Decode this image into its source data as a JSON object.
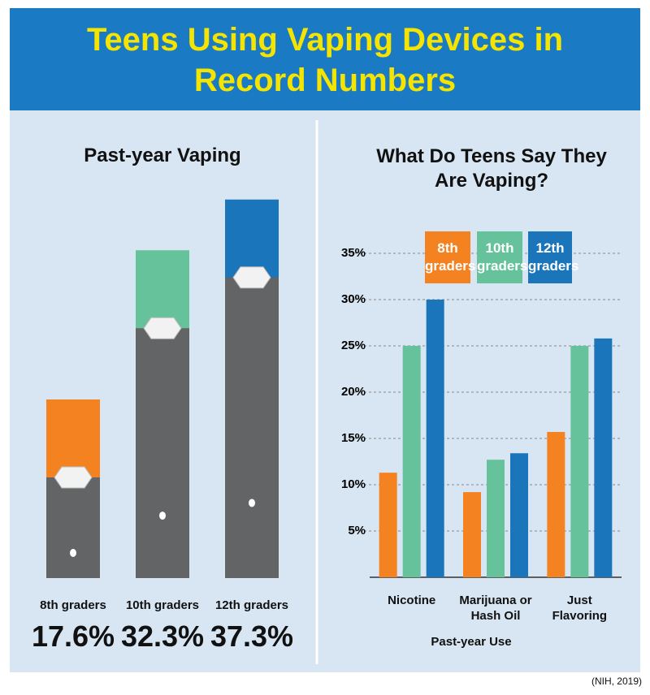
{
  "title": "Teens Using Vaping Devices in Record Numbers",
  "source": "(NIH, 2019)",
  "chart_data": [
    {
      "type": "device-bar",
      "title": "Past-year Vaping",
      "categories": [
        "8th graders",
        "10th graders",
        "12th graders"
      ],
      "values": [
        17.6,
        32.3,
        37.3
      ],
      "value_labels": [
        "17.6%",
        "32.3%",
        "37.3%"
      ],
      "colors": [
        "#f58220",
        "#66c29a",
        "#1b75bb"
      ]
    },
    {
      "type": "bar",
      "title": "What Do Teens Say They Are Vaping?",
      "x_label": "Past-year Use",
      "categories": [
        "Nicotine",
        "Marijuana or Hash Oil",
        "Just Flavoring"
      ],
      "series": [
        {
          "name": "8th graders",
          "color": "#f58220",
          "values": [
            11.3,
            9.2,
            15.7
          ]
        },
        {
          "name": "10th graders",
          "color": "#66c29a",
          "values": [
            25,
            12.7,
            25
          ]
        },
        {
          "name": "12th graders",
          "color": "#1b75bb",
          "values": [
            30,
            13.4,
            25.8
          ]
        }
      ],
      "ylim": [
        0,
        35
      ],
      "yticks": [
        {
          "value": 5,
          "label": "5%"
        },
        {
          "value": 10,
          "label": "10%"
        },
        {
          "value": 15,
          "label": "15%"
        },
        {
          "value": 20,
          "label": "20%"
        },
        {
          "value": 25,
          "label": "25%"
        },
        {
          "value": 30,
          "label": "30%"
        },
        {
          "value": 35,
          "label": "35%"
        }
      ],
      "grid": true
    }
  ]
}
